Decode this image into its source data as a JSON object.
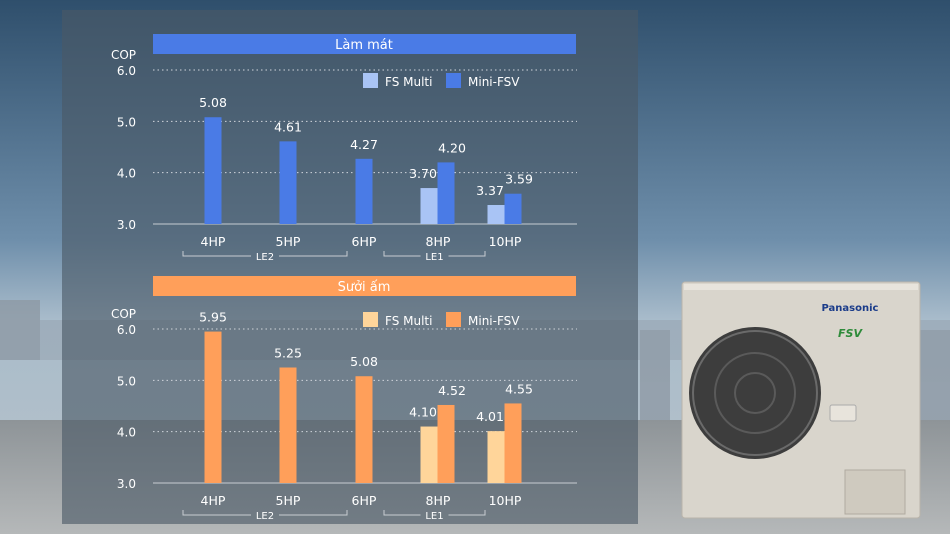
{
  "colors": {
    "cool_fs": "#a9c4f5",
    "cool_mini": "#4a7be6",
    "heat_fs": "#ffd59a",
    "heat_mini": "#ff9f5a",
    "panel": "#4a5866"
  },
  "product": {
    "brand_logo": "Panasonic",
    "series_logo": "FSV"
  },
  "chart_data": [
    {
      "type": "bar",
      "title": "Làm mát",
      "ylabel": "COP",
      "ylim": [
        3.0,
        6.0
      ],
      "yticks": [
        "3.0",
        "4.0",
        "5.0",
        "6.0"
      ],
      "grid": true,
      "legend_position": "top-right",
      "categories": [
        "4HP",
        "5HP",
        "6HP",
        "8HP",
        "10HP"
      ],
      "groups": [
        {
          "label": "LE2",
          "categories": [
            "4HP",
            "5HP",
            "6HP"
          ]
        },
        {
          "label": "LE1",
          "categories": [
            "8HP",
            "10HP"
          ]
        }
      ],
      "series": [
        {
          "name": "FS Multi",
          "values": [
            null,
            null,
            null,
            3.7,
            3.37
          ],
          "labels": [
            "",
            "",
            "",
            "3.70",
            "3.37"
          ]
        },
        {
          "name": "Mini-FSV",
          "values": [
            5.08,
            4.61,
            4.27,
            4.2,
            3.59
          ],
          "labels": [
            "5.08",
            "4.61",
            "4.27",
            "4.20",
            "3.59"
          ]
        }
      ]
    },
    {
      "type": "bar",
      "title": "Sưởi ấm",
      "ylabel": "COP",
      "ylim": [
        3.0,
        6.0
      ],
      "yticks": [
        "3.0",
        "4.0",
        "5.0",
        "6.0"
      ],
      "grid": true,
      "legend_position": "top-right",
      "categories": [
        "4HP",
        "5HP",
        "6HP",
        "8HP",
        "10HP"
      ],
      "groups": [
        {
          "label": "LE2",
          "categories": [
            "4HP",
            "5HP",
            "6HP"
          ]
        },
        {
          "label": "LE1",
          "categories": [
            "8HP",
            "10HP"
          ]
        }
      ],
      "series": [
        {
          "name": "FS Multi",
          "values": [
            null,
            null,
            null,
            4.1,
            4.01
          ],
          "labels": [
            "",
            "",
            "",
            "4.10",
            "4.01"
          ]
        },
        {
          "name": "Mini-FSV",
          "values": [
            5.95,
            5.25,
            5.08,
            4.52,
            4.55
          ],
          "labels": [
            "5.95",
            "5.25",
            "5.08",
            "4.52",
            "4.55"
          ]
        }
      ]
    }
  ]
}
